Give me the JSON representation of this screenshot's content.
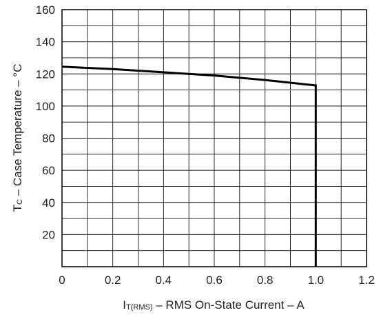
{
  "chart_data": {
    "type": "line",
    "xlabel_symbol": "I",
    "xlabel_subscript": "T(RMS)",
    "xlabel_text": " – RMS On-State Current – A",
    "ylabel_symbol": "T",
    "ylabel_subscript": "C",
    "ylabel_text": " – Case Temperature – °C",
    "xlim": [
      0,
      1.2
    ],
    "ylim": [
      0,
      160
    ],
    "x_ticks": [
      "0",
      "0.2",
      "0.4",
      "0.6",
      "0.8",
      "1.0",
      "1.2"
    ],
    "y_ticks": [
      "20",
      "40",
      "60",
      "80",
      "100",
      "120",
      "140",
      "160"
    ],
    "grid": true,
    "series": [
      {
        "x": [
          0,
          0.2,
          0.4,
          0.6,
          0.8,
          1.0,
          1.0
        ],
        "y": [
          124.5,
          123,
          121,
          119,
          116.2,
          112.8,
          0
        ]
      }
    ]
  }
}
